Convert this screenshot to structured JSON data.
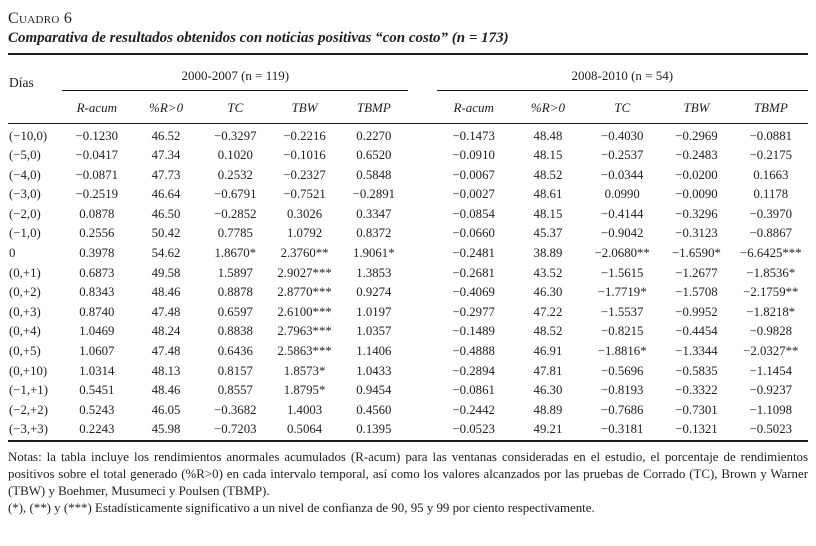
{
  "page": {
    "background_color": "#ffffff",
    "text_color": "#1f1f1f",
    "rule_color": "#1a1a1a"
  },
  "header": {
    "label": "Cuadro 6",
    "title": "Comparativa de resultados obtenidos con noticias positivas “con costo” (n = 173)"
  },
  "table": {
    "days_header": "Días",
    "group1_label": "2000-2007 (n = 119)",
    "group2_label": "2008-2010 (n = 54)",
    "columns": [
      "R-acum",
      "%R>0",
      "TC",
      "TBW",
      "TBMP"
    ],
    "rows": [
      {
        "dias": "(−10,0)",
        "g1": [
          "−0.1230",
          "46.52",
          "−0.3297",
          "−0.2216",
          "0.2270"
        ],
        "g2": [
          "−0.1473",
          "48.48",
          "−0.4030",
          "−0.2969",
          "−0.0881"
        ]
      },
      {
        "dias": "(−5,0)",
        "g1": [
          "−0.0417",
          "47.34",
          "0.1020",
          "−0.1016",
          "0.6520"
        ],
        "g2": [
          "−0.0910",
          "48.15",
          "−0.2537",
          "−0.2483",
          "−0.2175"
        ]
      },
      {
        "dias": "(−4,0)",
        "g1": [
          "−0.0871",
          "47.73",
          "0.2532",
          "−0.2327",
          "0.5848"
        ],
        "g2": [
          "−0.0067",
          "48.52",
          "−0.0344",
          "−0.0200",
          "0.1663"
        ]
      },
      {
        "dias": "(−3,0)",
        "g1": [
          "−0.2519",
          "46.64",
          "−0.6791",
          "−0.7521",
          "−0.2891"
        ],
        "g2": [
          "−0.0027",
          "48.61",
          "0.0990",
          "−0.0090",
          "0.1178"
        ]
      },
      {
        "dias": "(−2,0)",
        "g1": [
          "0.0878",
          "46.50",
          "−0.2852",
          "0.3026",
          "0.3347"
        ],
        "g2": [
          "−0.0854",
          "48.15",
          "−0.4144",
          "−0.3296",
          "−0.3970"
        ]
      },
      {
        "dias": "(−1,0)",
        "g1": [
          "0.2556",
          "50.42",
          "0.7785",
          "1.0792",
          "0.8372"
        ],
        "g2": [
          "−0.0660",
          "45.37",
          "−0.9042",
          "−0.3123",
          "−0.8867"
        ]
      },
      {
        "dias": "0",
        "g1": [
          "0.3978",
          "54.62",
          "1.8670*",
          "2.3760**",
          "1.9061*"
        ],
        "g2": [
          "−0.2481",
          "38.89",
          "−2.0680**",
          "−1.6590*",
          "−6.6425***"
        ]
      },
      {
        "dias": "(0,+1)",
        "g1": [
          "0.6873",
          "49.58",
          "1.5897",
          "2.9027***",
          "1.3853"
        ],
        "g2": [
          "−0.2681",
          "43.52",
          "−1.5615",
          "−1.2677",
          "−1.8536*"
        ]
      },
      {
        "dias": "(0,+2)",
        "g1": [
          "0.8343",
          "48.46",
          "0.8878",
          "2.8770***",
          "0.9274"
        ],
        "g2": [
          "−0.4069",
          "46.30",
          "−1.7719*",
          "−1.5708",
          "−2.1759**"
        ]
      },
      {
        "dias": "(0,+3)",
        "g1": [
          "0.8740",
          "47.48",
          "0.6597",
          "2.6100***",
          "1.0197"
        ],
        "g2": [
          "−0.2977",
          "47.22",
          "−1.5537",
          "−0.9952",
          "−1.8218*"
        ]
      },
      {
        "dias": "(0,+4)",
        "g1": [
          "1.0469",
          "48.24",
          "0.8838",
          "2.7963***",
          "1.0357"
        ],
        "g2": [
          "−0.1489",
          "48.52",
          "−0.8215",
          "−0.4454",
          "−0.9828"
        ]
      },
      {
        "dias": "(0,+5)",
        "g1": [
          "1.0607",
          "47.48",
          "0.6436",
          "2.5863***",
          "1.1406"
        ],
        "g2": [
          "−0.4888",
          "46.91",
          "−1.8816*",
          "−1.3344",
          "−2.0327**"
        ]
      },
      {
        "dias": "(0,+10)",
        "g1": [
          "1.0314",
          "48.13",
          "0.8157",
          "1.8573*",
          "1.0433"
        ],
        "g2": [
          "−0.2894",
          "47.81",
          "−0.5696",
          "−0.5835",
          "−1.1454"
        ]
      },
      {
        "dias": "(−1,+1)",
        "g1": [
          "0.5451",
          "48.46",
          "0.8557",
          "1.8795*",
          "0.9454"
        ],
        "g2": [
          "−0.0861",
          "46.30",
          "−0.8193",
          "−0.3322",
          "−0.9237"
        ]
      },
      {
        "dias": "(−2,+2)",
        "g1": [
          "0.5243",
          "46.05",
          "−0.3682",
          "1.4003",
          "0.4560"
        ],
        "g2": [
          "−0.2442",
          "48.89",
          "−0.7686",
          "−0.7301",
          "−1.1098"
        ]
      },
      {
        "dias": "(−3,+3)",
        "g1": [
          "0.2243",
          "45.98",
          "−0.7203",
          "0.5064",
          "0.1395"
        ],
        "g2": [
          "−0.0523",
          "49.21",
          "−0.3181",
          "−0.1321",
          "−0.5023"
        ]
      }
    ]
  },
  "notes": {
    "paragraph1": "Notas: la tabla incluye los rendimientos anormales acumulados (R-acum) para las ventanas consideradas en el estudio, el porcentaje de rendimientos positivos sobre el total generado (%R>0) en cada intervalo temporal, así como los valores alcanzados por las pruebas de Corrado (TC), Brown y Warner (TBW) y Boehmer, Musumeci y Poulsen (TBMP).",
    "paragraph2": "(*), (**) y (***) Estadísticamente significativo a un nivel de confianza de 90, 95 y 99 por ciento respectivamente."
  }
}
